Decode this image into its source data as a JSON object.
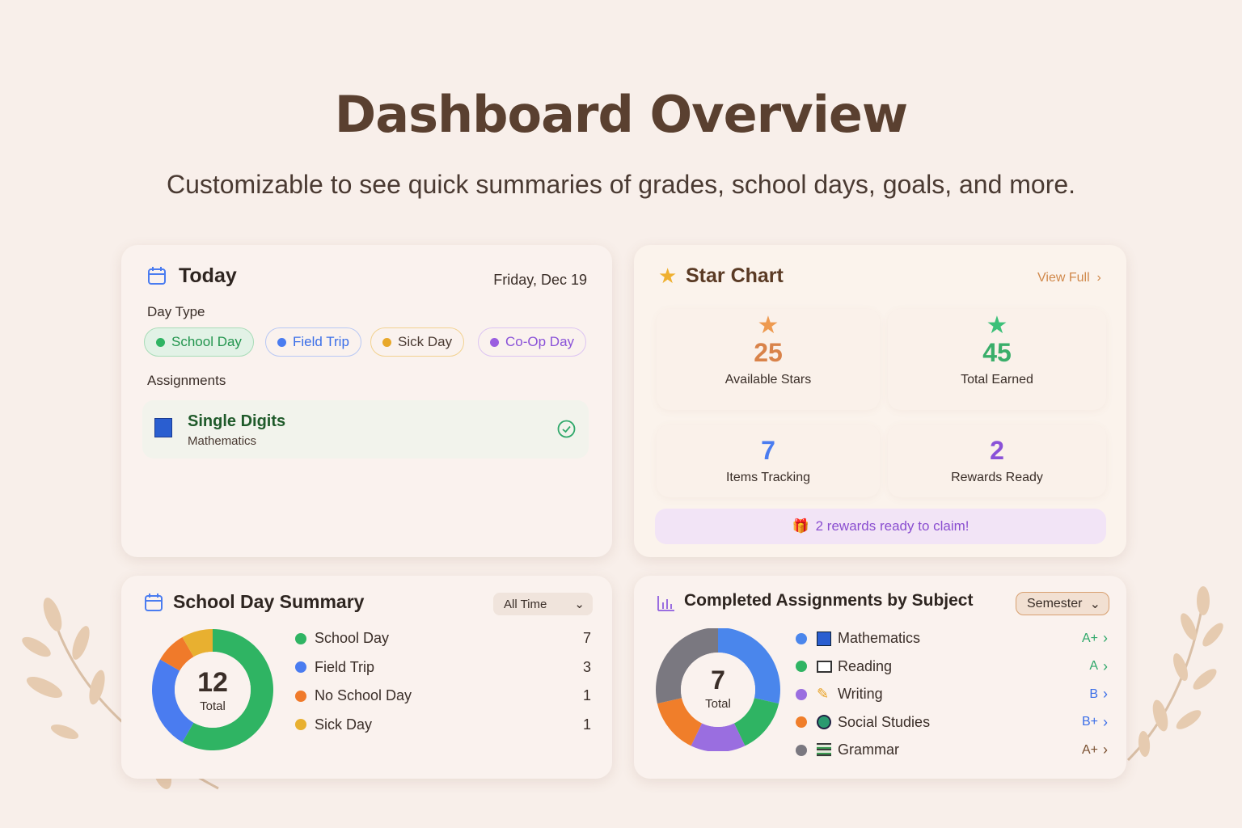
{
  "header": {
    "title": "Dashboard Overview",
    "subtitle": "Customizable to see quick summaries of grades, school days, goals, and more."
  },
  "today": {
    "title": "Today",
    "date": "Friday, Dec 19",
    "day_type_label": "Day Type",
    "day_types": [
      {
        "label": "School Day",
        "color": "#2fb463"
      },
      {
        "label": "Field Trip",
        "color": "#4a7cf0"
      },
      {
        "label": "Sick Day",
        "color": "#e8a82a"
      },
      {
        "label": "Co-Op Day",
        "color": "#9a5ee0"
      }
    ],
    "assignments_label": "Assignments",
    "assignment": {
      "title": "Single Digits",
      "subject": "Mathematics",
      "status": "completed"
    }
  },
  "star_chart": {
    "title": "Star Chart",
    "view_full": "View Full",
    "stats": [
      {
        "value": "25",
        "label": "Available Stars",
        "color": "#d9834a"
      },
      {
        "value": "45",
        "label": "Total Earned",
        "color": "#3aae6a"
      },
      {
        "value": "7",
        "label": "Items Tracking",
        "color": "#4a7cf0"
      },
      {
        "value": "2",
        "label": "Rewards Ready",
        "color": "#8a52d8"
      }
    ],
    "banner": "2 rewards ready to claim!"
  },
  "school_summary": {
    "title": "School Day Summary",
    "filter": "All Time",
    "total": "12",
    "total_label": "Total",
    "items": [
      {
        "label": "School Day",
        "value": "7",
        "color": "#2fb463"
      },
      {
        "label": "Field Trip",
        "value": "3",
        "color": "#4a7cf0"
      },
      {
        "label": "No School Day",
        "value": "1",
        "color": "#f07a2a"
      },
      {
        "label": "Sick Day",
        "value": "1",
        "color": "#e8b030"
      }
    ]
  },
  "subjects": {
    "title": "Completed Assignments by Subject",
    "filter": "Semester",
    "total": "7",
    "total_label": "Total",
    "items": [
      {
        "label": "Mathematics",
        "grade": "A+",
        "count": 2,
        "color": "#4a86ec",
        "grade_color": "#2fa86a",
        "icon": "abacus-icon"
      },
      {
        "label": "Reading",
        "grade": "A",
        "count": 1,
        "color": "#2fb463",
        "grade_color": "#2fa86a",
        "icon": "book-icon"
      },
      {
        "label": "Writing",
        "grade": "B",
        "count": 1,
        "color": "#9a6ee0",
        "grade_color": "#3a6ee8",
        "icon": "pencil-icon"
      },
      {
        "label": "Social Studies",
        "grade": "B+",
        "count": 1,
        "color": "#f07e2a",
        "grade_color": "#3a6ee8",
        "icon": "globe-icon"
      },
      {
        "label": "Grammar",
        "grade": "A+",
        "count": 2,
        "color": "#7a7880",
        "grade_color": "#7a5030",
        "icon": "books-icon"
      }
    ]
  }
}
